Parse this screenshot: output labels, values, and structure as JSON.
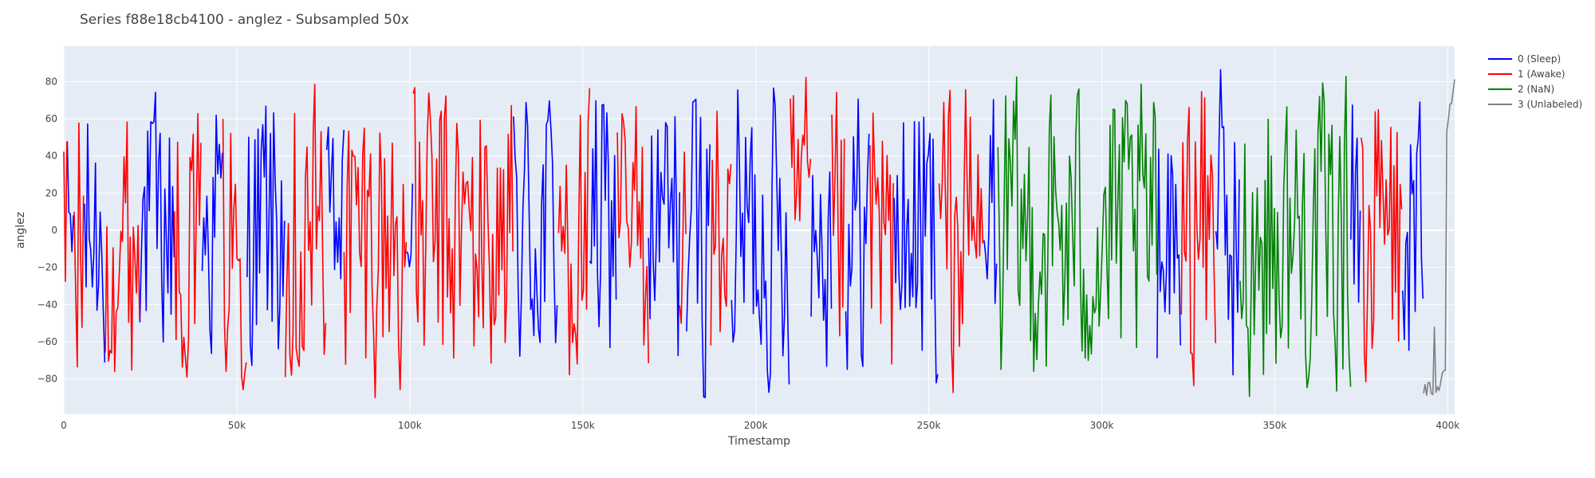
{
  "chart_data": {
    "type": "line",
    "title": "Series f88e18cb4100 - anglez - Subsampled 50x",
    "xlabel": "Timestamp",
    "ylabel": "anglez",
    "xlim": [
      0,
      402000
    ],
    "ylim": [
      -99,
      99
    ],
    "x_ticks": [
      {
        "value": 0,
        "label": "0"
      },
      {
        "value": 50000,
        "label": "50k"
      },
      {
        "value": 100000,
        "label": "100k"
      },
      {
        "value": 150000,
        "label": "150k"
      },
      {
        "value": 200000,
        "label": "200k"
      },
      {
        "value": 250000,
        "label": "250k"
      },
      {
        "value": 300000,
        "label": "300k"
      },
      {
        "value": 350000,
        "label": "350k"
      },
      {
        "value": 400000,
        "label": "400k"
      }
    ],
    "y_ticks": [
      {
        "value": 80,
        "label": "80"
      },
      {
        "value": 60,
        "label": "60"
      },
      {
        "value": 40,
        "label": "40"
      },
      {
        "value": 20,
        "label": "20"
      },
      {
        "value": 0,
        "label": "0"
      },
      {
        "value": -20,
        "label": "−20"
      },
      {
        "value": -40,
        "label": "−40"
      },
      {
        "value": -60,
        "label": "−60"
      },
      {
        "value": -80,
        "label": "−80"
      }
    ],
    "grid": true,
    "legend_position": "top-right",
    "plot_background": "#E5ECF6",
    "series": [
      {
        "name": "0 (Sleep)",
        "color": "#0000FF",
        "segments": [
          {
            "x0": 1000,
            "x1": 3000,
            "amp": 60,
            "mean": 0
          },
          {
            "x0": 6000,
            "x1": 12000,
            "amp": 75,
            "mean": -5
          },
          {
            "x0": 22000,
            "x1": 32000,
            "amp": 75,
            "mean": 0
          },
          {
            "x0": 40000,
            "x1": 46000,
            "amp": 82,
            "mean": 5
          },
          {
            "x0": 53000,
            "x1": 64000,
            "amp": 82,
            "mean": 5
          },
          {
            "x0": 76000,
            "x1": 81000,
            "amp": 55,
            "mean": -5
          },
          {
            "x0": 99000,
            "x1": 101000,
            "amp": 40,
            "mean": 0
          },
          {
            "x0": 130000,
            "x1": 143000,
            "amp": 88,
            "mean": 0
          },
          {
            "x0": 152000,
            "x1": 160000,
            "amp": 82,
            "mean": 0
          },
          {
            "x0": 169000,
            "x1": 178000,
            "amp": 85,
            "mean": -5
          },
          {
            "x0": 180000,
            "x1": 187000,
            "amp": 88,
            "mean": -5
          },
          {
            "x0": 193000,
            "x1": 210000,
            "amp": 85,
            "mean": 0
          },
          {
            "x0": 216000,
            "x1": 222000,
            "amp": 80,
            "mean": 0
          },
          {
            "x0": 226000,
            "x1": 233000,
            "amp": 82,
            "mean": 0
          },
          {
            "x0": 240000,
            "x1": 253000,
            "amp": 86,
            "mean": 0
          },
          {
            "x0": 266000,
            "x1": 270000,
            "amp": 80,
            "mean": -10
          },
          {
            "x0": 316000,
            "x1": 323000,
            "amp": 82,
            "mean": 0
          },
          {
            "x0": 333000,
            "x1": 340000,
            "amp": 88,
            "mean": 0
          },
          {
            "x0": 372000,
            "x1": 375000,
            "amp": 80,
            "mean": 10
          },
          {
            "x0": 387000,
            "x1": 393000,
            "amp": 88,
            "mean": 0
          }
        ]
      },
      {
        "name": "1 (Awake)",
        "color": "#FF0000",
        "segments": [
          {
            "x0": 0,
            "x1": 1000,
            "amp": 88,
            "mean": -10
          },
          {
            "x0": 3000,
            "x1": 6000,
            "amp": 88,
            "mean": -10
          },
          {
            "x0": 12000,
            "x1": 22000,
            "amp": 78,
            "mean": -15
          },
          {
            "x0": 32000,
            "x1": 40000,
            "amp": 72,
            "mean": -10
          },
          {
            "x0": 46000,
            "x1": 53000,
            "amp": 82,
            "mean": -15
          },
          {
            "x0": 64000,
            "x1": 76000,
            "amp": 90,
            "mean": 0
          },
          {
            "x0": 81000,
            "x1": 99000,
            "amp": 86,
            "mean": -10
          },
          {
            "x0": 101000,
            "x1": 130000,
            "amp": 88,
            "mean": -10
          },
          {
            "x0": 143000,
            "x1": 152000,
            "amp": 82,
            "mean": -10
          },
          {
            "x0": 160000,
            "x1": 169000,
            "amp": 82,
            "mean": -10
          },
          {
            "x0": 178000,
            "x1": 180000,
            "amp": 70,
            "mean": -10
          },
          {
            "x0": 187000,
            "x1": 193000,
            "amp": 80,
            "mean": -10
          },
          {
            "x0": 210000,
            "x1": 216000,
            "amp": 82,
            "mean": 0
          },
          {
            "x0": 222000,
            "x1": 226000,
            "amp": 80,
            "mean": -10
          },
          {
            "x0": 233000,
            "x1": 240000,
            "amp": 88,
            "mean": -20
          },
          {
            "x0": 253000,
            "x1": 266000,
            "amp": 88,
            "mean": -10
          },
          {
            "x0": 323000,
            "x1": 333000,
            "amp": 88,
            "mean": -5
          },
          {
            "x0": 375000,
            "x1": 387000,
            "amp": 88,
            "mean": -10
          }
        ]
      },
      {
        "name": "2 (NaN)",
        "color": "#008000",
        "segments": [
          {
            "x0": 270000,
            "x1": 316000,
            "amp": 85,
            "mean": -10
          },
          {
            "x0": 340000,
            "x1": 372000,
            "amp": 85,
            "mean": -10
          }
        ]
      },
      {
        "name": "3 (Unlabeled)",
        "color": "#808080",
        "segments": [
          {
            "x0": 393000,
            "x1": 402000,
            "amp": 88,
            "mean": -85
          }
        ]
      }
    ]
  }
}
